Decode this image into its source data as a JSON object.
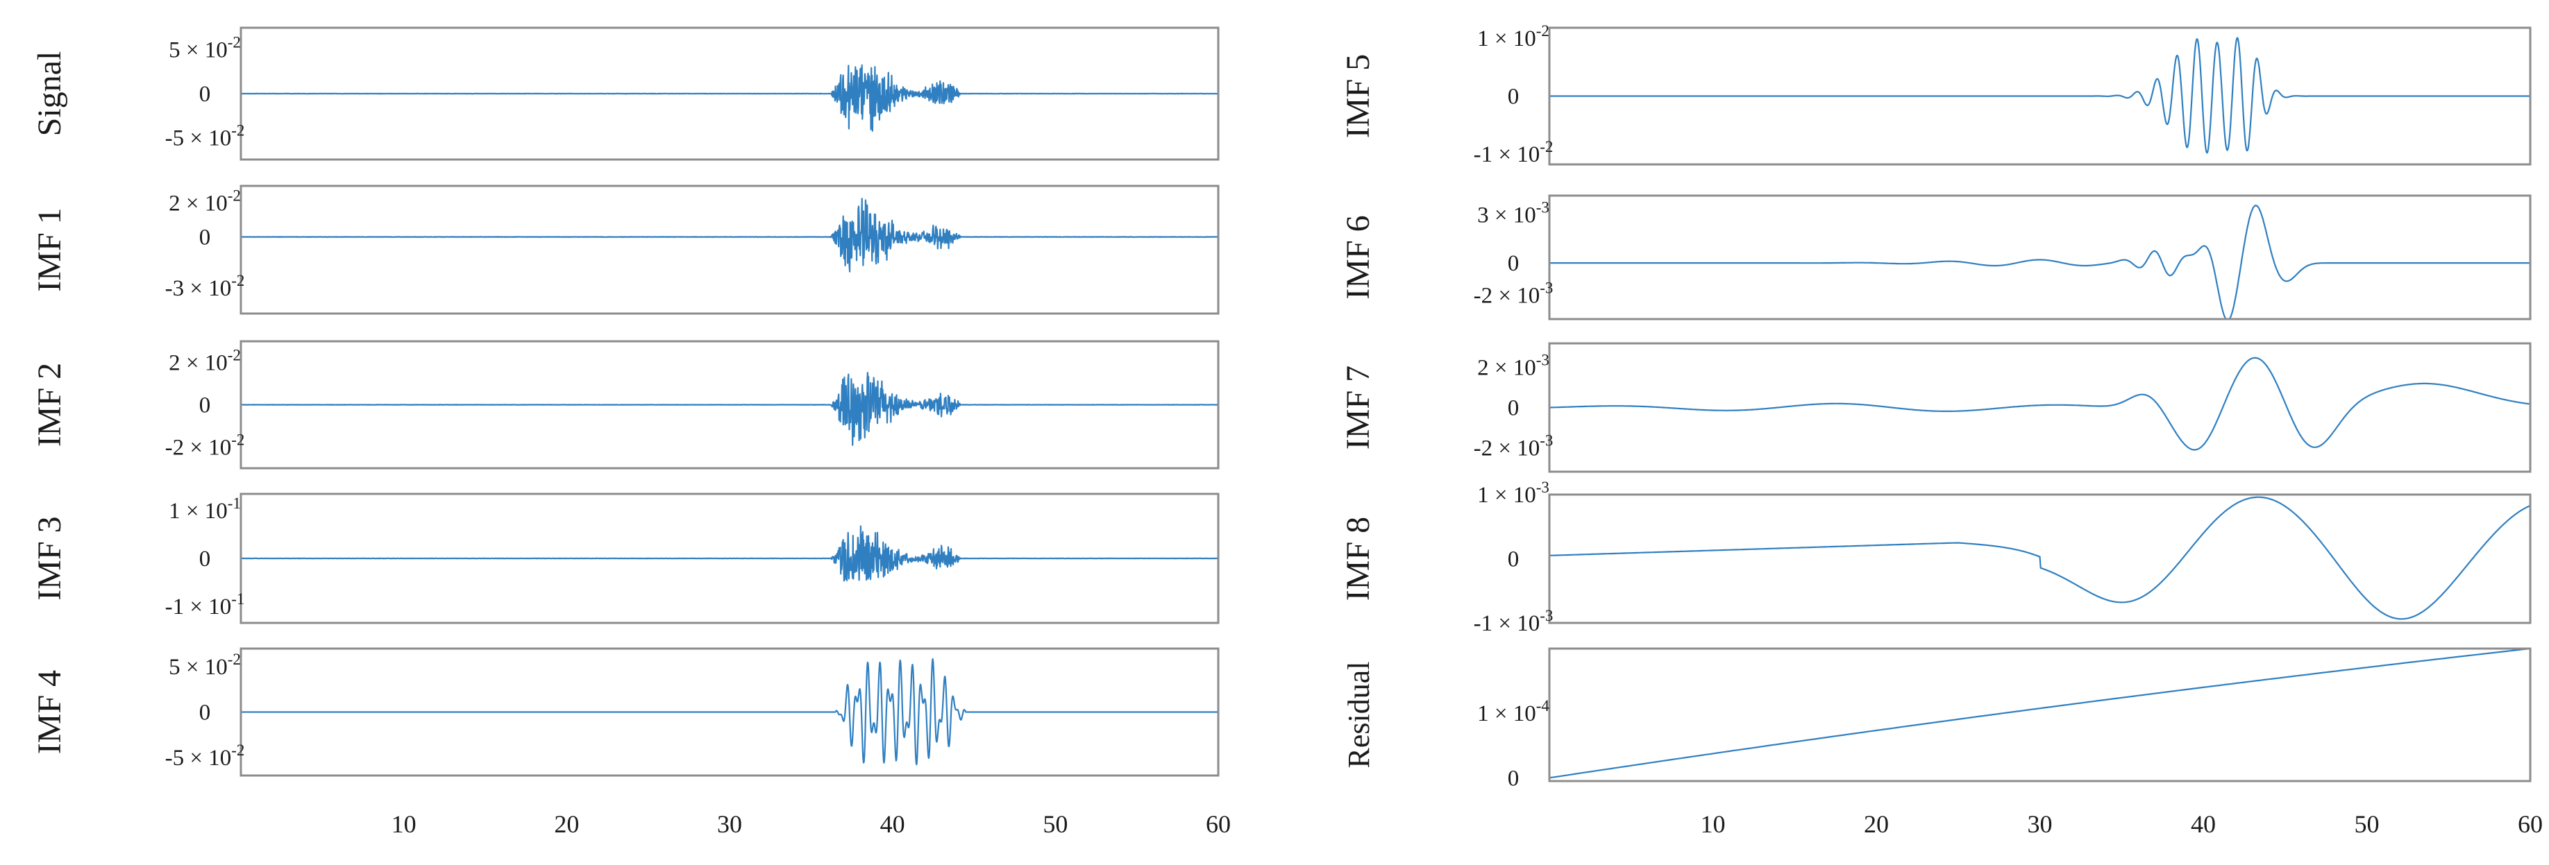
{
  "chart_data": {
    "type": "line",
    "color": "#2f7fc1",
    "columns": [
      {
        "xlim": [
          0,
          60
        ],
        "xticks": [
          10,
          20,
          30,
          40,
          50,
          60
        ],
        "panels": [
          {
            "label": "Signal",
            "amp": 0.05,
            "kind": "burst",
            "ticks": [
              {
                "m": "5",
                "e": "-2",
                "v": 0.05
              },
              {
                "t": "0",
                "v": 0
              },
              {
                "m": "-5",
                "e": "-2",
                "v": -0.05
              }
            ],
            "ylim": [
              -0.075,
              0.075
            ]
          },
          {
            "label": "IMF 1",
            "amp": 0.025,
            "kind": "burst",
            "ticks": [
              {
                "m": "2",
                "e": "-2",
                "v": 0.02
              },
              {
                "t": "0",
                "v": 0
              },
              {
                "m": "-3",
                "e": "-2",
                "v": -0.03
              }
            ],
            "ylim": [
              -0.045,
              0.03
            ]
          },
          {
            "label": "IMF 2",
            "amp": 0.02,
            "kind": "burst",
            "ticks": [
              {
                "m": "2",
                "e": "-2",
                "v": 0.02
              },
              {
                "t": "0",
                "v": 0
              },
              {
                "m": "-2",
                "e": "-2",
                "v": -0.02
              }
            ],
            "ylim": [
              -0.03,
              0.03
            ]
          },
          {
            "label": "IMF 3",
            "amp": 0.08,
            "kind": "burst",
            "ticks": [
              {
                "m": "1",
                "e": "-1",
                "v": 0.1
              },
              {
                "t": "0",
                "v": 0
              },
              {
                "m": "-1",
                "e": "-1",
                "v": -0.1
              }
            ],
            "ylim": [
              -0.135,
              0.135
            ]
          },
          {
            "label": "IMF 4",
            "amp": 0.06,
            "kind": "osc",
            "ticks": [
              {
                "m": "5",
                "e": "-2",
                "v": 0.05
              },
              {
                "t": "0",
                "v": 0
              },
              {
                "m": "-5",
                "e": "-2",
                "v": -0.05
              }
            ],
            "ylim": [
              -0.07,
              0.07
            ]
          }
        ]
      },
      {
        "xlim": [
          0,
          60
        ],
        "xticks": [
          10,
          20,
          30,
          40,
          50,
          60
        ],
        "panels": [
          {
            "label": "IMF 5",
            "kind": "imf5",
            "ticks": [
              {
                "m": "1",
                "e": "-2",
                "v": 0.01
              },
              {
                "t": "0",
                "v": 0
              },
              {
                "m": "-1",
                "e": "-2",
                "v": -0.01
              }
            ],
            "ylim": [
              -0.0118,
              0.0118
            ]
          },
          {
            "label": "IMF 6",
            "kind": "imf6",
            "ticks": [
              {
                "m": "3",
                "e": "-3",
                "v": 0.003
              },
              {
                "t": "0",
                "v": 0
              },
              {
                "m": "-2",
                "e": "-3",
                "v": -0.002
              }
            ],
            "ylim": [
              -0.0035,
              0.0042
            ]
          },
          {
            "label": "IMF 7",
            "kind": "imf7",
            "ticks": [
              {
                "m": "2",
                "e": "-3",
                "v": 0.002
              },
              {
                "t": "0",
                "v": 0
              },
              {
                "m": "-2",
                "e": "-3",
                "v": -0.002
              }
            ],
            "ylim": [
              -0.0032,
              0.0032
            ]
          },
          {
            "label": "IMF 8",
            "kind": "imf8",
            "ticks": [
              {
                "m": "1",
                "e": "-3",
                "v": 0.001
              },
              {
                "t": "0",
                "v": 0
              },
              {
                "m": "-1",
                "e": "-3",
                "v": -0.001
              }
            ],
            "ylim": [
              -0.001,
              0.001
            ]
          },
          {
            "label": "Residual",
            "kind": "residual",
            "ticks": [
              {
                "m": "1",
                "e": "-4",
                "v": 0.0001
              },
              {
                "t": "0",
                "v": 0
              }
            ],
            "ylim": [
              -5e-06,
              0.0002
            ]
          }
        ]
      }
    ]
  }
}
